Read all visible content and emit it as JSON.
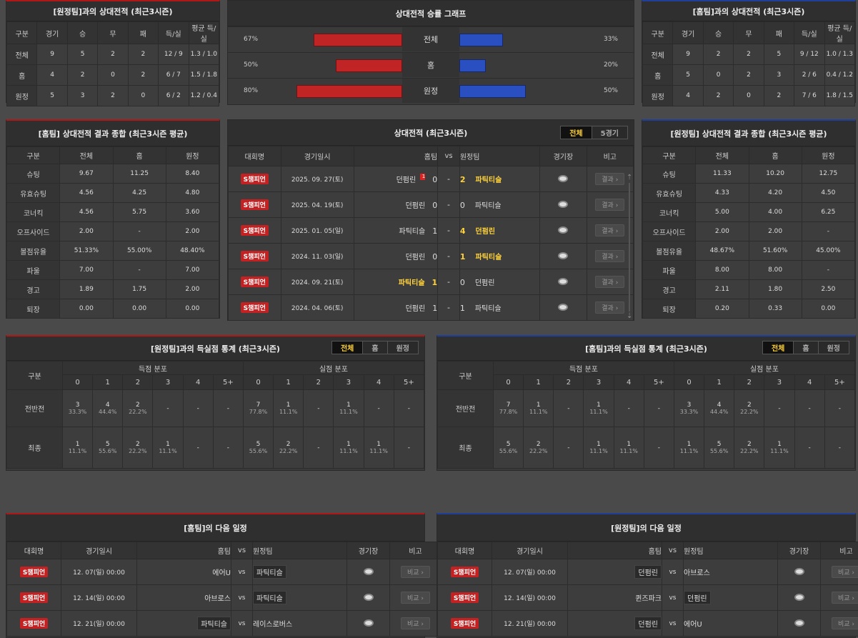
{
  "h2h_home": {
    "title": "[원정팀]과의 상대전적 (최근3시즌)",
    "headers": [
      "구분",
      "경기",
      "승",
      "무",
      "패",
      "득/실",
      "평균 득/실"
    ],
    "rows": [
      [
        "전체",
        "9",
        "5",
        "2",
        "2",
        "12 / 9",
        "1.3 / 1.0"
      ],
      [
        "홈",
        "4",
        "2",
        "0",
        "2",
        "6 / 7",
        "1.5 / 1.8"
      ],
      [
        "원정",
        "5",
        "3",
        "2",
        "0",
        "6 / 2",
        "1.2 / 0.4"
      ]
    ]
  },
  "h2h_away": {
    "title": "[홈팀]과의 상대전적 (최근3시즌)",
    "headers": [
      "구분",
      "경기",
      "승",
      "무",
      "패",
      "득/실",
      "평균 득/실"
    ],
    "rows": [
      [
        "전체",
        "9",
        "2",
        "2",
        "5",
        "9 / 12",
        "1.0 / 1.3"
      ],
      [
        "홈",
        "5",
        "0",
        "2",
        "3",
        "2 / 6",
        "0.4 / 1.2"
      ],
      [
        "원정",
        "4",
        "2",
        "0",
        "2",
        "7 / 6",
        "1.8 / 1.5"
      ]
    ]
  },
  "graph": {
    "title": "상대전적 승률 그래프",
    "rows": [
      {
        "label": "전체",
        "left": "67%",
        "right": "33%",
        "left_val": 67,
        "right_val": 33
      },
      {
        "label": "홈",
        "left": "50%",
        "right": "20%",
        "left_val": 50,
        "right_val": 20
      },
      {
        "label": "원정",
        "left": "80%",
        "right": "50%",
        "left_val": 80,
        "right_val": 50
      }
    ]
  },
  "sum_home": {
    "title": "[홈팀] 상대전적 결과 종합 (최근3시즌 평균)",
    "headers": [
      "구분",
      "전체",
      "홈",
      "원정"
    ],
    "rows": [
      [
        "슈팅",
        "9.67",
        "11.25",
        "8.40"
      ],
      [
        "유효슈팅",
        "4.56",
        "4.25",
        "4.80"
      ],
      [
        "코너킥",
        "4.56",
        "5.75",
        "3.60"
      ],
      [
        "오프사이드",
        "2.00",
        "-",
        "2.00"
      ],
      [
        "볼점유율",
        "51.33%",
        "55.00%",
        "48.40%"
      ],
      [
        "파울",
        "7.00",
        "-",
        "7.00"
      ],
      [
        "경고",
        "1.89",
        "1.75",
        "2.00"
      ],
      [
        "퇴장",
        "0.00",
        "0.00",
        "0.00"
      ]
    ]
  },
  "sum_away": {
    "title": "[원정팀] 상대전적 결과 종합 (최근3시즌 평균)",
    "headers": [
      "구분",
      "전체",
      "홈",
      "원정"
    ],
    "rows": [
      [
        "슈팅",
        "11.33",
        "10.20",
        "12.75"
      ],
      [
        "유효슈팅",
        "4.33",
        "4.20",
        "4.50"
      ],
      [
        "코너킥",
        "5.00",
        "4.00",
        "6.25"
      ],
      [
        "오프사이드",
        "2.00",
        "2.00",
        "-"
      ],
      [
        "볼점유율",
        "48.67%",
        "51.60%",
        "45.00%"
      ],
      [
        "파울",
        "8.00",
        "8.00",
        "-"
      ],
      [
        "경고",
        "2.11",
        "1.80",
        "2.50"
      ],
      [
        "퇴장",
        "0.20",
        "0.33",
        "0.00"
      ]
    ]
  },
  "matches": {
    "title": "상대전적 (최근3시즌)",
    "tab_all": "전체",
    "tab_5": "5경기",
    "headers": {
      "league": "대회명",
      "date": "경기일시",
      "home": "홈팀",
      "vs": "vs",
      "away": "원정팀",
      "venue": "경기장",
      "note": "비고"
    },
    "rows": [
      {
        "league": "S챔피언",
        "date": "2025. 09. 27(토)",
        "home": "던펌린",
        "hs": "0",
        "as": "2",
        "away": "파틱티슬",
        "winner": "away",
        "card": "1",
        "btn": "결과"
      },
      {
        "league": "S챔피언",
        "date": "2025. 04. 19(토)",
        "home": "던펌린",
        "hs": "0",
        "as": "0",
        "away": "파틱티슬",
        "winner": "none",
        "card": "",
        "btn": "결과"
      },
      {
        "league": "S챔피언",
        "date": "2025. 01. 05(일)",
        "home": "파틱티슬",
        "hs": "1",
        "as": "4",
        "away": "던펌린",
        "winner": "away",
        "card": "",
        "btn": "결과"
      },
      {
        "league": "S챔피언",
        "date": "2024. 11. 03(일)",
        "home": "던펌린",
        "hs": "0",
        "as": "1",
        "away": "파틱티슬",
        "winner": "away",
        "card": "",
        "btn": "결과"
      },
      {
        "league": "S챔피언",
        "date": "2024. 09. 21(토)",
        "home": "파틱티슬",
        "hs": "1",
        "as": "0",
        "away": "던펌린",
        "winner": "home",
        "card": "",
        "btn": "결과"
      },
      {
        "league": "S챔피언",
        "date": "2024. 04. 06(토)",
        "home": "던펌린",
        "hs": "1",
        "as": "1",
        "away": "파틱티슬",
        "winner": "none",
        "card": "",
        "btn": "결과"
      }
    ]
  },
  "goals_left": {
    "title": "[원정팀]과의 득실점 통계 (최근3시즌)",
    "tabs": [
      "전체",
      "홈",
      "원정"
    ],
    "h_gubun": "구분",
    "h_scored": "득점 분포",
    "h_conceded": "실점 분포",
    "cols": [
      "0",
      "1",
      "2",
      "3",
      "4",
      "5+"
    ],
    "rows": [
      {
        "label": "전반전",
        "cells": [
          [
            "3",
            "33.3%"
          ],
          [
            "4",
            "44.4%"
          ],
          [
            "2",
            "22.2%"
          ],
          [
            "-",
            ""
          ],
          [
            "-",
            ""
          ],
          [
            "-",
            ""
          ],
          [
            "7",
            "77.8%"
          ],
          [
            "1",
            "11.1%"
          ],
          [
            "-",
            ""
          ],
          [
            "1",
            "11.1%"
          ],
          [
            "-",
            ""
          ],
          [
            "-",
            ""
          ]
        ]
      },
      {
        "label": "최종",
        "cells": [
          [
            "1",
            "11.1%"
          ],
          [
            "5",
            "55.6%"
          ],
          [
            "2",
            "22.2%"
          ],
          [
            "1",
            "11.1%"
          ],
          [
            "-",
            ""
          ],
          [
            "-",
            ""
          ],
          [
            "5",
            "55.6%"
          ],
          [
            "2",
            "22.2%"
          ],
          [
            "-",
            ""
          ],
          [
            "1",
            "11.1%"
          ],
          [
            "1",
            "11.1%"
          ],
          [
            "-",
            ""
          ]
        ]
      }
    ]
  },
  "goals_right": {
    "title": "[홈팀]과의 득실점 통계 (최근3시즌)",
    "tabs": [
      "전체",
      "홈",
      "원정"
    ],
    "h_gubun": "구분",
    "h_scored": "득점 분포",
    "h_conceded": "실점 분포",
    "cols": [
      "0",
      "1",
      "2",
      "3",
      "4",
      "5+"
    ],
    "rows": [
      {
        "label": "전반전",
        "cells": [
          [
            "7",
            "77.8%"
          ],
          [
            "1",
            "11.1%"
          ],
          [
            "-",
            ""
          ],
          [
            "1",
            "11.1%"
          ],
          [
            "-",
            ""
          ],
          [
            "-",
            ""
          ],
          [
            "3",
            "33.3%"
          ],
          [
            "4",
            "44.4%"
          ],
          [
            "2",
            "22.2%"
          ],
          [
            "-",
            ""
          ],
          [
            "-",
            ""
          ],
          [
            "-",
            ""
          ]
        ]
      },
      {
        "label": "최종",
        "cells": [
          [
            "5",
            "55.6%"
          ],
          [
            "2",
            "22.2%"
          ],
          [
            "-",
            ""
          ],
          [
            "1",
            "11.1%"
          ],
          [
            "1",
            "11.1%"
          ],
          [
            "-",
            ""
          ],
          [
            "1",
            "11.1%"
          ],
          [
            "5",
            "55.6%"
          ],
          [
            "2",
            "22.2%"
          ],
          [
            "1",
            "11.1%"
          ],
          [
            "-",
            ""
          ],
          [
            "-",
            ""
          ]
        ]
      }
    ]
  },
  "next_home": {
    "title": "[홈팀]의 다음 일정",
    "headers": {
      "league": "대회명",
      "date": "경기일시",
      "home": "홈팀",
      "vs": "vs",
      "away": "원정팀",
      "venue": "경기장",
      "note": "비고"
    },
    "rows": [
      {
        "league": "S챔피언",
        "date": "12. 07(일) 00:00",
        "home": "에어U",
        "away": "파틱티슬",
        "boxed": "away",
        "btn": "비교"
      },
      {
        "league": "S챔피언",
        "date": "12. 14(일) 00:00",
        "home": "아브로스",
        "away": "파틱티슬",
        "boxed": "away",
        "btn": "비교"
      },
      {
        "league": "S챔피언",
        "date": "12. 21(일) 00:00",
        "home": "파틱티슬",
        "away": "레이스로버스",
        "boxed": "home",
        "btn": "비교"
      }
    ]
  },
  "next_away": {
    "title": "[원정팀]의 다음 일정",
    "headers": {
      "league": "대회명",
      "date": "경기일시",
      "home": "홈팀",
      "vs": "vs",
      "away": "원정팀",
      "venue": "경기장",
      "note": "비고"
    },
    "rows": [
      {
        "league": "S챔피언",
        "date": "12. 07(일) 00:00",
        "home": "던펌린",
        "away": "아브로스",
        "boxed": "home",
        "btn": "비교"
      },
      {
        "league": "S챔피언",
        "date": "12. 14(일) 00:00",
        "home": "퀸즈파크",
        "away": "던펌린",
        "boxed": "away",
        "btn": "비교"
      },
      {
        "league": "S챔피언",
        "date": "12. 21(일) 00:00",
        "home": "던펌린",
        "away": "에어U",
        "boxed": "home",
        "btn": "비교"
      }
    ]
  }
}
